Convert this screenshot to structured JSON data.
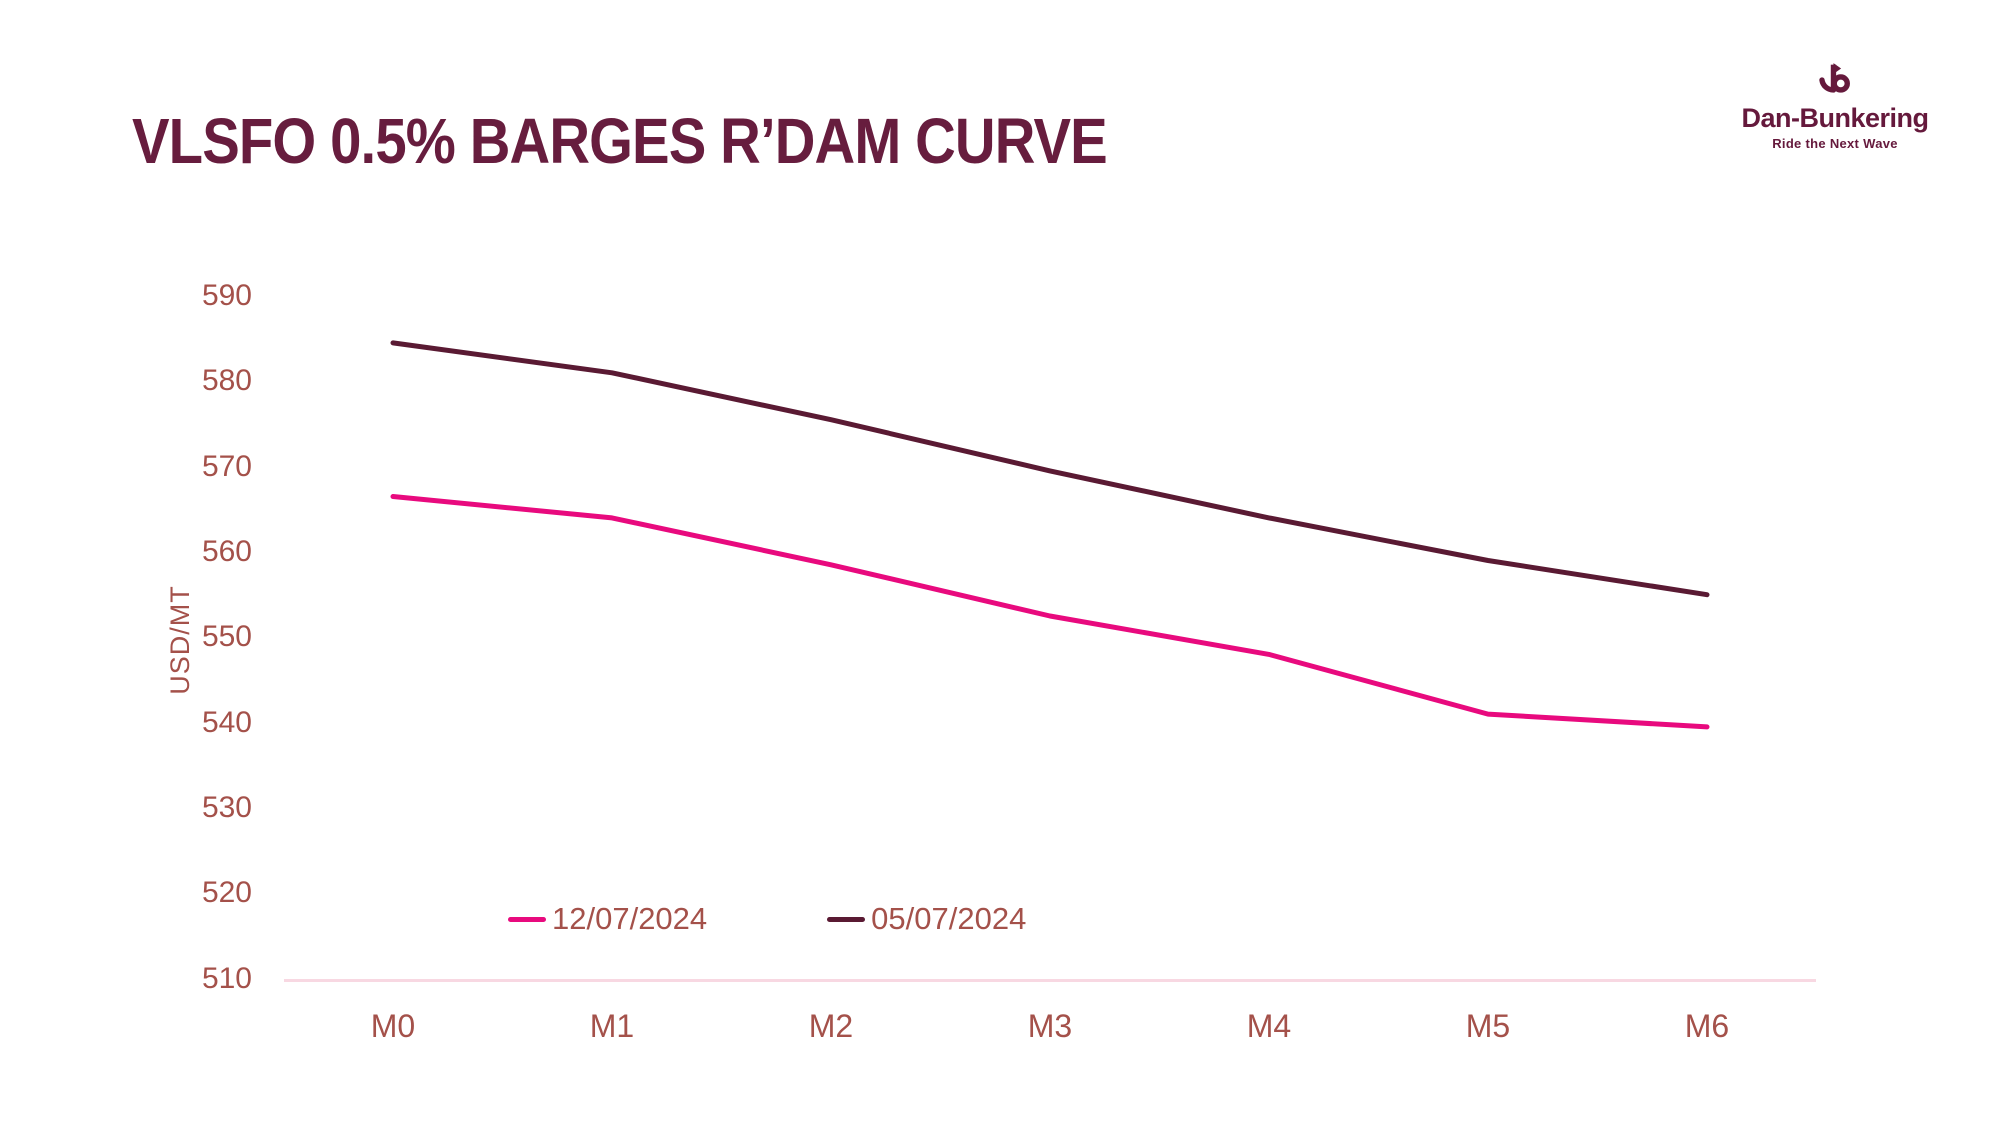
{
  "header": {
    "title": "VLSFO 0.5% BARGES R’DAM CURVE"
  },
  "logo": {
    "name": "Dan-Bunkering",
    "tagline": "Ride the Next Wave",
    "icon": "anchor-icon",
    "color": "#65193C"
  },
  "chart_data": {
    "type": "line",
    "title": "VLSFO 0.5% BARGES R’DAM CURVE",
    "xlabel": "",
    "ylabel": "USD/MT",
    "categories": [
      "M0",
      "M1",
      "M2",
      "M3",
      "M4",
      "M5",
      "M6"
    ],
    "yticks": [
      590,
      580,
      570,
      560,
      550,
      540,
      530,
      520,
      510
    ],
    "ylim": [
      510,
      595
    ],
    "grid": false,
    "legend_position": "bottom-center-inside",
    "series": [
      {
        "name": "12/07/2024",
        "color": "#E80A7E",
        "values": [
          566.5,
          564,
          558.5,
          552.5,
          548,
          541,
          539.5
        ]
      },
      {
        "name": "05/07/2024",
        "color": "#5A1A33",
        "values": [
          584.5,
          581,
          575.5,
          569.5,
          564,
          559,
          555
        ]
      }
    ]
  },
  "colors": {
    "title": "#671D3E",
    "tick_text": "#A4514A",
    "axis_line": "#F8D8E2",
    "background": "#FFFFFF"
  }
}
